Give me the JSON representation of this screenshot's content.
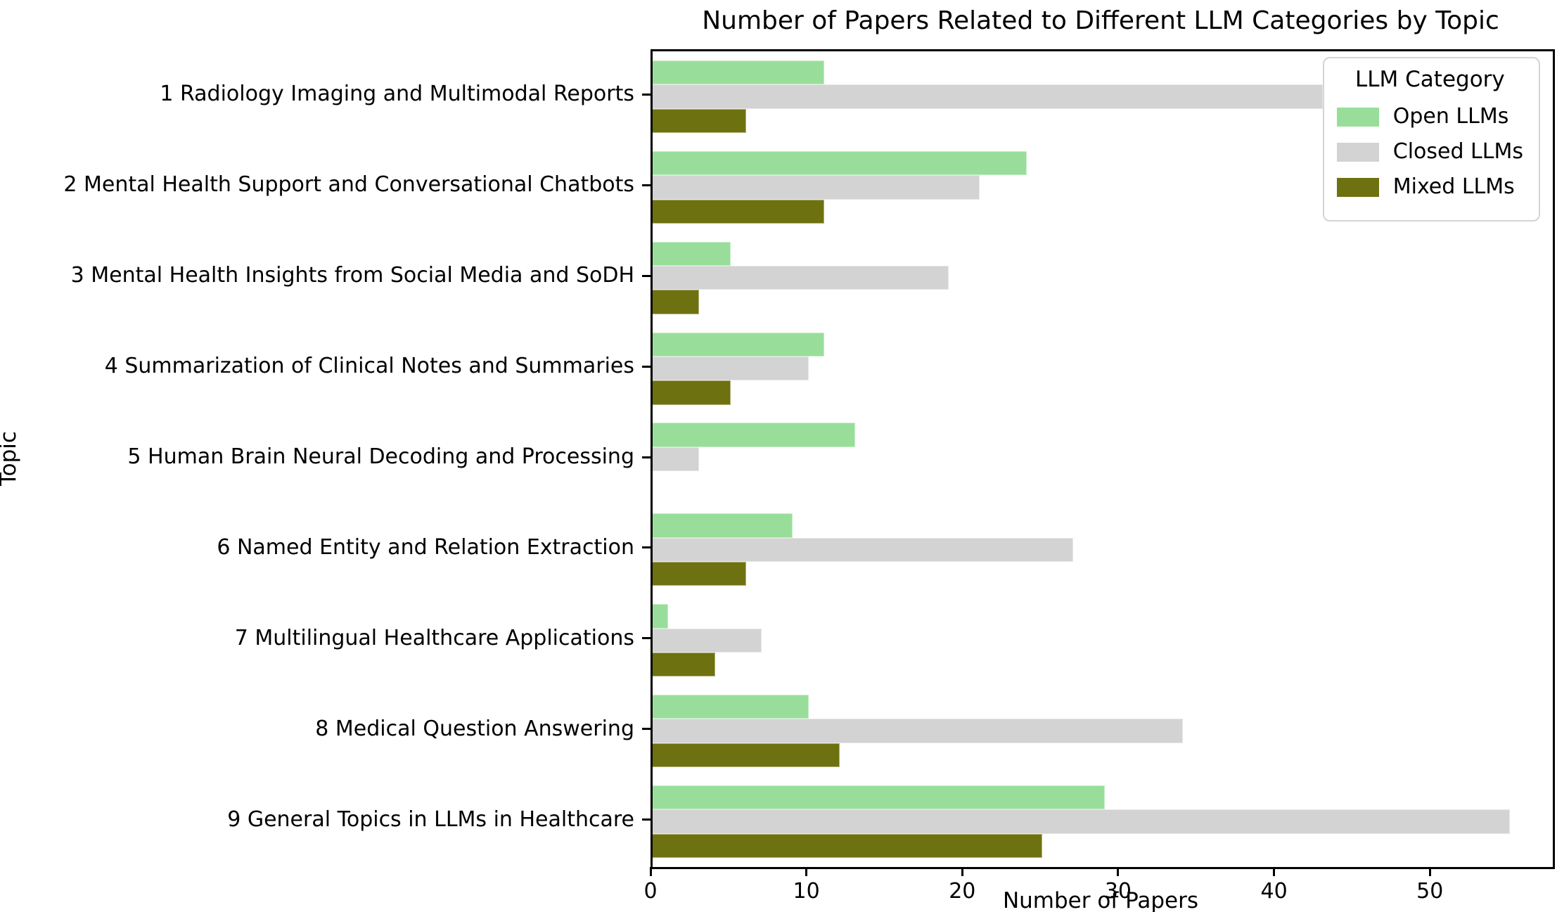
{
  "title": "Number of Papers Related to Different LLM Categories by Topic",
  "chart_data": {
    "type": "bar",
    "orientation": "horizontal",
    "title": "Number of Papers Related to Different LLM Categories by Topic",
    "xlabel": "Number of Papers",
    "ylabel": "Topic",
    "xlim": [
      0,
      57.75
    ],
    "xticks": [
      0,
      10,
      20,
      30,
      40,
      50
    ],
    "grid": false,
    "categories": [
      "1 Radiology Imaging and Multimodal Reports",
      "2 Mental Health Support and Conversational Chatbots",
      "3 Mental Health Insights from Social Media and SoDH",
      "4 Summarization of Clinical Notes and Summaries",
      "5 Human Brain Neural Decoding and Processing",
      "6 Named Entity and Relation Extraction",
      "7 Multilingual Healthcare Applications",
      "8 Medical Question Answering",
      "9 General Topics in LLMs in Healthcare"
    ],
    "series": [
      {
        "name": "Open LLMs",
        "color": "#98de9a",
        "values": [
          11,
          24,
          5,
          11,
          13,
          9,
          1,
          10,
          29
        ]
      },
      {
        "name": "Closed LLMs",
        "color": "#d3d3d3",
        "values": [
          43,
          21,
          19,
          10,
          3,
          27,
          7,
          34,
          55
        ]
      },
      {
        "name": "Mixed LLMs",
        "color": "#6e710f",
        "values": [
          6,
          11,
          3,
          5,
          0,
          6,
          4,
          12,
          25
        ]
      }
    ],
    "legend": {
      "title": "LLM Category",
      "position": "upper right",
      "entries": [
        "Open LLMs",
        "Closed LLMs",
        "Mixed LLMs"
      ]
    },
    "text_color": "#000000",
    "spine_color": "#000000"
  }
}
